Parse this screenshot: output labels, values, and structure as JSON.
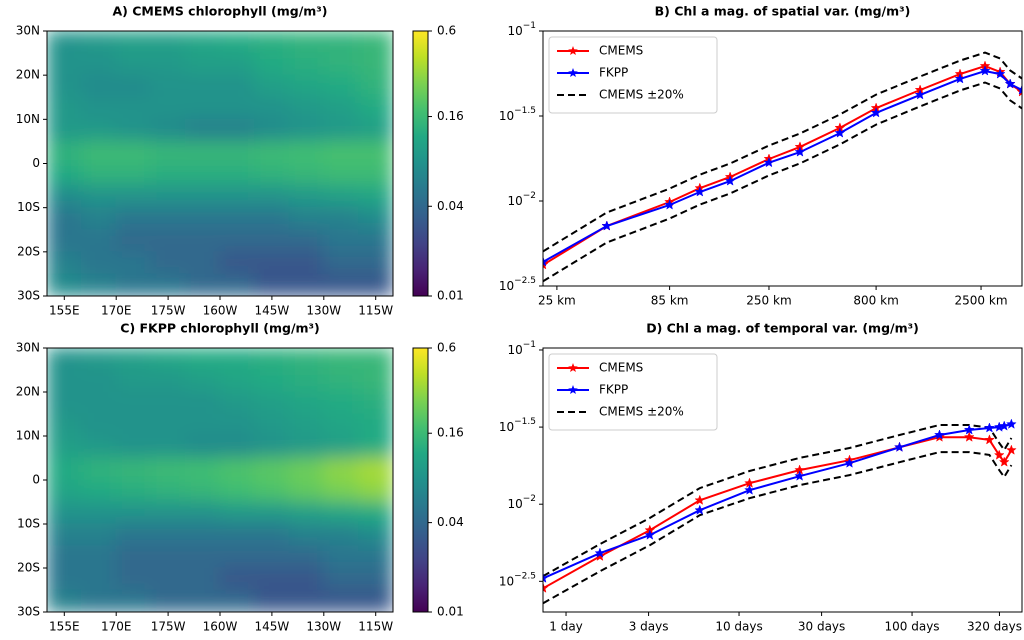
{
  "chart_data": [
    {
      "type": "heatmap",
      "title": "A) CMEMS chlorophyll (mg/m³)",
      "xlim": [
        150,
        250
      ],
      "xticks": [
        {
          "value": 155,
          "label": "155E"
        },
        {
          "value": 170,
          "label": "170E"
        },
        {
          "value": 185,
          "label": "175W"
        },
        {
          "value": 200,
          "label": "160W"
        },
        {
          "value": 215,
          "label": "145W"
        },
        {
          "value": 230,
          "label": "130W"
        },
        {
          "value": 245,
          "label": "115W"
        }
      ],
      "ylim": [
        -30,
        30
      ],
      "yticks": [
        {
          "value": -30,
          "label": "30S"
        },
        {
          "value": -20,
          "label": "20S"
        },
        {
          "value": -10,
          "label": "10S"
        },
        0,
        {
          "value": 10,
          "label": "10N"
        },
        {
          "value": 20,
          "label": "20N"
        },
        {
          "value": 30,
          "label": "30N"
        }
      ],
      "colormap": "viridis",
      "clog": true,
      "clim": [
        0.01,
        0.6
      ],
      "cticks": [
        0.01,
        0.04,
        0.16,
        0.6
      ],
      "values": [
        [
          0.08,
          0.09,
          0.1,
          0.1,
          0.11,
          0.12,
          0.13,
          0.14,
          0.14,
          0.15
        ],
        [
          0.08,
          0.08,
          0.09,
          0.09,
          0.1,
          0.1,
          0.12,
          0.13,
          0.14,
          0.15
        ],
        [
          0.08,
          0.07,
          0.07,
          0.08,
          0.08,
          0.08,
          0.1,
          0.11,
          0.12,
          0.14
        ],
        [
          0.09,
          0.08,
          0.08,
          0.08,
          0.08,
          0.08,
          0.08,
          0.09,
          0.1,
          0.12
        ],
        [
          0.09,
          0.09,
          0.08,
          0.07,
          0.06,
          0.06,
          0.07,
          0.08,
          0.09,
          0.1
        ],
        [
          0.14,
          0.16,
          0.16,
          0.15,
          0.15,
          0.15,
          0.16,
          0.17,
          0.18,
          0.18
        ],
        [
          0.12,
          0.14,
          0.14,
          0.13,
          0.13,
          0.13,
          0.14,
          0.15,
          0.16,
          0.16
        ],
        [
          0.07,
          0.08,
          0.08,
          0.08,
          0.08,
          0.08,
          0.08,
          0.09,
          0.1,
          0.11
        ],
        [
          0.05,
          0.06,
          0.05,
          0.05,
          0.05,
          0.05,
          0.05,
          0.06,
          0.06,
          0.07
        ],
        [
          0.05,
          0.05,
          0.04,
          0.04,
          0.04,
          0.04,
          0.04,
          0.04,
          0.05,
          0.05
        ],
        [
          0.06,
          0.05,
          0.05,
          0.04,
          0.04,
          0.03,
          0.03,
          0.03,
          0.04,
          0.04
        ],
        [
          0.07,
          0.06,
          0.05,
          0.05,
          0.04,
          0.04,
          0.03,
          0.03,
          0.03,
          0.03
        ]
      ]
    },
    {
      "type": "line",
      "title": "B) Chl a mag. of spatial var. (mg/m³)",
      "xlog": true,
      "ylog": true,
      "x": [
        21.5,
        43,
        85,
        118,
        164,
        250,
        350,
        540,
        800,
        1290,
        1990,
        2610,
        3075,
        3430,
        3900
      ],
      "xlim": [
        21.5,
        3900
      ],
      "xticks": [
        {
          "value": 25,
          "label": "25 km"
        },
        {
          "value": 85,
          "label": "85 km"
        },
        {
          "value": 250,
          "label": "250 km"
        },
        {
          "value": 800,
          "label": "800 km"
        },
        {
          "value": 2500,
          "label": "2500 km"
        }
      ],
      "ylim": [
        0.0031623,
        0.1
      ],
      "yticks": [
        {
          "value": 0.1,
          "label": "10−1"
        },
        {
          "value": 0.031623,
          "label": "10−1.5"
        },
        {
          "value": 0.01,
          "label": "10−2"
        },
        {
          "value": 0.0031623,
          "label": "10−2.5"
        }
      ],
      "legend": "upper left",
      "series": [
        {
          "name": "CMEMS",
          "color": "#ff0000",
          "marker": "star",
          "values": [
            0.00421,
            0.00713,
            0.00986,
            0.0119,
            0.01384,
            0.01767,
            0.0208,
            0.0269,
            0.0352,
            0.045,
            0.0558,
            0.0622,
            0.0574,
            0.0488,
            0.0438
          ]
        },
        {
          "name": "FKPP",
          "color": "#0000ff",
          "marker": "star",
          "values": [
            0.00438,
            0.00713,
            0.00947,
            0.0113,
            0.0131,
            0.0168,
            0.0194,
            0.0251,
            0.033,
            0.0421,
            0.0523,
            0.0582,
            0.0558,
            0.0488,
            0.045
          ]
        },
        {
          "name": "CMEMS ±20%",
          "color": "#000000",
          "dashed": true,
          "values": [
            0.00505,
            0.00856,
            0.01183,
            0.01428,
            0.01661,
            0.0212,
            0.02496,
            0.03228,
            0.04224,
            0.054,
            0.06696,
            0.07464,
            0.06888,
            0.05856,
            0.05256
          ],
          "values_lower": [
            0.00337,
            0.0057,
            0.00789,
            0.00952,
            0.01107,
            0.01414,
            0.01664,
            0.02152,
            0.02816,
            0.036,
            0.04464,
            0.04976,
            0.04592,
            0.03904,
            0.03504
          ]
        }
      ]
    },
    {
      "type": "heatmap",
      "title": "C) FKPP chlorophyll (mg/m³)",
      "xlim": [
        150,
        250
      ],
      "xticks": [
        {
          "value": 155,
          "label": "155E"
        },
        {
          "value": 170,
          "label": "170E"
        },
        {
          "value": 185,
          "label": "175W"
        },
        {
          "value": 200,
          "label": "160W"
        },
        {
          "value": 215,
          "label": "145W"
        },
        {
          "value": 230,
          "label": "130W"
        },
        {
          "value": 245,
          "label": "115W"
        }
      ],
      "ylim": [
        -30,
        30
      ],
      "yticks": [
        {
          "value": -30,
          "label": "30S"
        },
        {
          "value": -20,
          "label": "20S"
        },
        {
          "value": -10,
          "label": "10S"
        },
        0,
        {
          "value": 10,
          "label": "10N"
        },
        {
          "value": 20,
          "label": "20N"
        },
        {
          "value": 30,
          "label": "30N"
        }
      ],
      "colormap": "viridis",
      "clog": true,
      "clim": [
        0.01,
        0.6
      ],
      "cticks": [
        0.01,
        0.04,
        0.16,
        0.6
      ],
      "values": [
        [
          0.08,
          0.09,
          0.1,
          0.11,
          0.12,
          0.12,
          0.13,
          0.14,
          0.15,
          0.15
        ],
        [
          0.08,
          0.08,
          0.09,
          0.09,
          0.1,
          0.11,
          0.12,
          0.13,
          0.14,
          0.15
        ],
        [
          0.08,
          0.08,
          0.08,
          0.08,
          0.08,
          0.09,
          0.1,
          0.11,
          0.12,
          0.13
        ],
        [
          0.09,
          0.08,
          0.08,
          0.08,
          0.08,
          0.08,
          0.09,
          0.1,
          0.11,
          0.12
        ],
        [
          0.1,
          0.09,
          0.08,
          0.08,
          0.07,
          0.07,
          0.08,
          0.09,
          0.1,
          0.12
        ],
        [
          0.12,
          0.14,
          0.15,
          0.16,
          0.17,
          0.19,
          0.21,
          0.24,
          0.3,
          0.35
        ],
        [
          0.11,
          0.12,
          0.13,
          0.14,
          0.15,
          0.17,
          0.19,
          0.22,
          0.26,
          0.3
        ],
        [
          0.08,
          0.08,
          0.08,
          0.08,
          0.08,
          0.09,
          0.09,
          0.1,
          0.11,
          0.12
        ],
        [
          0.06,
          0.06,
          0.05,
          0.05,
          0.05,
          0.05,
          0.05,
          0.06,
          0.06,
          0.07
        ],
        [
          0.05,
          0.05,
          0.04,
          0.04,
          0.04,
          0.04,
          0.04,
          0.04,
          0.05,
          0.05
        ],
        [
          0.05,
          0.05,
          0.04,
          0.04,
          0.04,
          0.03,
          0.03,
          0.03,
          0.04,
          0.04
        ],
        [
          0.06,
          0.05,
          0.05,
          0.04,
          0.04,
          0.04,
          0.03,
          0.03,
          0.03,
          0.03
        ]
      ]
    },
    {
      "type": "line",
      "title": "D) Chl a mag. of temporal var. (mg/m³)",
      "xlog": true,
      "ylog": true,
      "x": [
        0.737,
        1.57,
        3.05,
        5.93,
        11.5,
        22.4,
        43.5,
        84.6,
        144,
        214,
        280,
        319,
        341,
        375
      ],
      "xlim": [
        0.736,
        432
      ],
      "xticks": [
        {
          "value": 1,
          "label": "1 day"
        },
        {
          "value": 3,
          "label": "3 days"
        },
        {
          "value": 10,
          "label": "10 days"
        },
        {
          "value": 30,
          "label": "30 days"
        },
        {
          "value": 100,
          "label": "100 days"
        },
        {
          "value": 320,
          "label": "320 days"
        }
      ],
      "ylim": [
        0.002,
        0.103
      ],
      "yticks": [
        {
          "value": 0.1,
          "label": "10−1"
        },
        {
          "value": 0.031623,
          "label": "10−1.5"
        },
        {
          "value": 0.01,
          "label": "10−2"
        },
        {
          "value": 0.0031623,
          "label": "10−2.5"
        }
      ],
      "legend": "upper left",
      "series": [
        {
          "name": "CMEMS",
          "color": "#ff0000",
          "marker": "star",
          "values": [
            0.00285,
            0.00459,
            0.00678,
            0.0106,
            0.01368,
            0.01663,
            0.0193,
            0.0234,
            0.0272,
            0.0272,
            0.0261,
            0.0208,
            0.01875,
            0.0224
          ]
        },
        {
          "name": "FKPP",
          "color": "#0000ff",
          "marker": "star",
          "values": [
            0.00331,
            0.00481,
            0.0063,
            0.00914,
            0.01233,
            0.0152,
            0.01845,
            0.0234,
            0.0281,
            0.0303,
            0.0312,
            0.0316,
            0.0321,
            0.033
          ]
        },
        {
          "name": "CMEMS ±20%",
          "color": "#000000",
          "dashed": true,
          "values": [
            0.00342,
            0.00551,
            0.00814,
            0.01272,
            0.01642,
            0.01996,
            0.02316,
            0.02808,
            0.03264,
            0.03264,
            0.03132,
            0.02496,
            0.0225,
            0.02688
          ],
          "values_lower": [
            0.00228,
            0.00367,
            0.00542,
            0.00848,
            0.01094,
            0.0133,
            0.01544,
            0.01872,
            0.02176,
            0.02176,
            0.02088,
            0.01664,
            0.015,
            0.01792
          ]
        }
      ]
    }
  ]
}
